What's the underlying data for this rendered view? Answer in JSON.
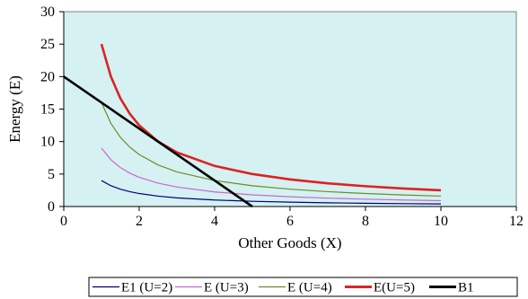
{
  "chart_data": {
    "type": "line",
    "xlabel": "Other Goods (X)",
    "ylabel": "Energy (E)",
    "xlim": [
      0,
      12
    ],
    "ylim": [
      0,
      30
    ],
    "xticks": [
      0,
      2,
      4,
      6,
      8,
      10,
      12
    ],
    "yticks": [
      0,
      5,
      10,
      15,
      20,
      25,
      30
    ],
    "grid": false,
    "plot_background": "#d5f1f2",
    "legend_position": "bottom",
    "series": [
      {
        "name": "E1 (U=2)",
        "color": "#000080",
        "x": [
          1,
          1.25,
          1.5,
          1.75,
          2,
          2.5,
          3,
          4,
          5,
          6,
          7,
          8,
          9,
          10
        ],
        "y": [
          4,
          3.2,
          2.67,
          2.29,
          2,
          1.6,
          1.33,
          1,
          0.8,
          0.67,
          0.57,
          0.5,
          0.44,
          0.4
        ]
      },
      {
        "name": "E (U=3)",
        "color": "#cc66cc",
        "x": [
          1,
          1.25,
          1.5,
          1.75,
          2,
          2.5,
          3,
          4,
          5,
          6,
          7,
          8,
          9,
          10
        ],
        "y": [
          9,
          7.2,
          6,
          5.14,
          4.5,
          3.6,
          3,
          2.25,
          1.8,
          1.5,
          1.29,
          1.13,
          1,
          0.9
        ]
      },
      {
        "name": "E (U=4)",
        "color": "#6b8e23",
        "x": [
          1,
          1.25,
          1.5,
          1.75,
          2,
          2.5,
          3,
          4,
          5,
          6,
          7,
          8,
          9,
          10
        ],
        "y": [
          16,
          12.8,
          10.67,
          9.14,
          8,
          6.4,
          5.33,
          4,
          3.2,
          2.67,
          2.29,
          2,
          1.78,
          1.6
        ]
      },
      {
        "name": "E(U=5)",
        "color": "#dd2222",
        "x": [
          1,
          1.25,
          1.5,
          1.75,
          2,
          2.5,
          3,
          4,
          5,
          6,
          7,
          8,
          9,
          10
        ],
        "y": [
          25,
          20,
          16.67,
          14.29,
          12.5,
          10,
          8.33,
          6.25,
          5,
          4.17,
          3.57,
          3.13,
          2.78,
          2.5
        ]
      },
      {
        "name": "B1",
        "color": "#000000",
        "x": [
          0,
          5
        ],
        "y": [
          20,
          0
        ]
      }
    ]
  }
}
